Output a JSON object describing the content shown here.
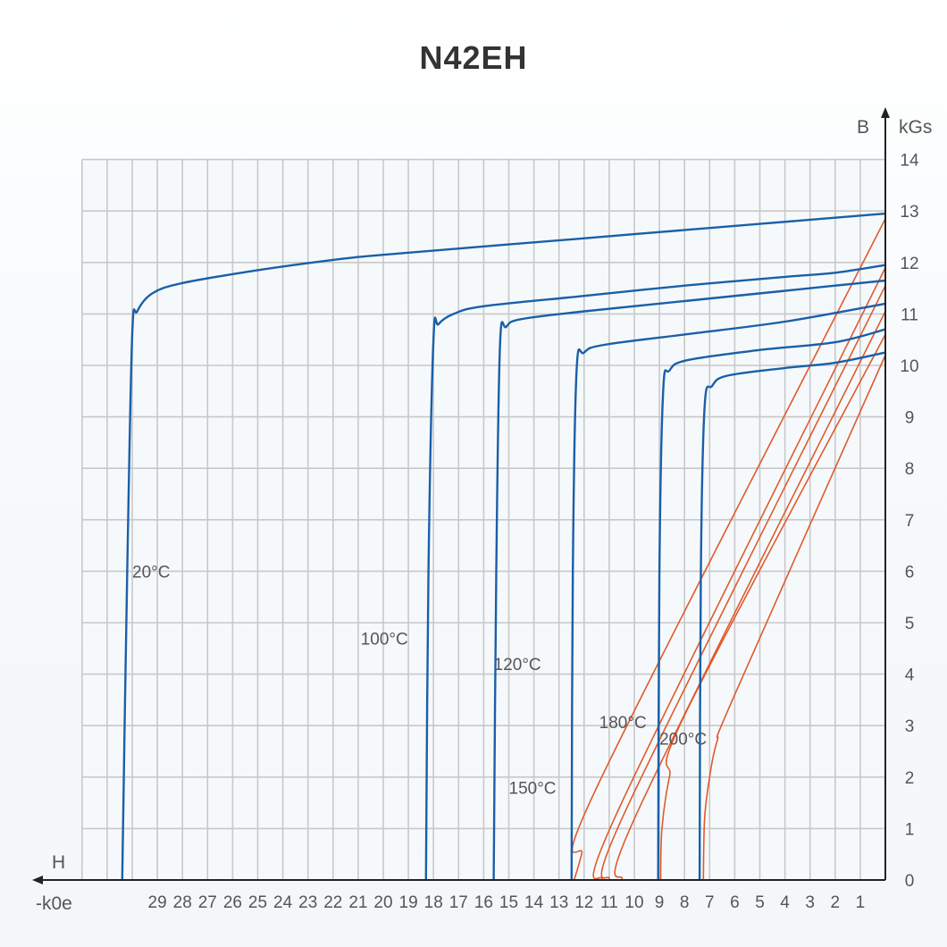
{
  "chart_data": {
    "type": "line",
    "title": "N42EH",
    "xlabel": "H",
    "xunit": "-k0e",
    "ylabel": "B",
    "yunit": "kGs",
    "x_ticks": [
      "29",
      "28",
      "27",
      "26",
      "25",
      "24",
      "23",
      "22",
      "21",
      "20",
      "19",
      "18",
      "17",
      "16",
      "15",
      "14",
      "13",
      "12",
      "11",
      "10",
      "9",
      "8",
      "7",
      "6",
      "5",
      "4",
      "3",
      "2",
      "1"
    ],
    "y_ticks": [
      "0",
      "1",
      "2",
      "3",
      "4",
      "5",
      "6",
      "7",
      "8",
      "9",
      "10",
      "11",
      "12",
      "13",
      "14"
    ],
    "xlim": [
      32,
      0
    ],
    "ylim": [
      0,
      14
    ],
    "grid": true,
    "colors": {
      "b_curve": "#1a5fa8",
      "j_curve": "#e05a2b",
      "grid": "#c8c8c8",
      "axis": "#222222"
    },
    "b_curves": [
      {
        "name": "20°C",
        "label": "20°C",
        "points": [
          [
            30.4,
            0
          ],
          [
            30.2,
            6
          ],
          [
            30.0,
            10.6
          ],
          [
            29.8,
            11.05
          ],
          [
            29.2,
            11.4
          ],
          [
            28,
            11.6
          ],
          [
            25,
            11.85
          ],
          [
            22,
            12.05
          ],
          [
            20,
            12.15
          ],
          [
            15,
            12.35
          ],
          [
            10,
            12.55
          ],
          [
            5,
            12.75
          ],
          [
            0,
            12.95
          ]
        ]
      },
      {
        "name": "100°C",
        "label": "100°C",
        "points": [
          [
            18.3,
            0
          ],
          [
            18.2,
            6
          ],
          [
            18.0,
            10.5
          ],
          [
            17.8,
            10.8
          ],
          [
            17.2,
            11.0
          ],
          [
            16,
            11.15
          ],
          [
            12,
            11.35
          ],
          [
            8,
            11.55
          ],
          [
            4,
            11.72
          ],
          [
            2,
            11.8
          ],
          [
            0,
            11.95
          ]
        ]
      },
      {
        "name": "120°C",
        "label": "120°C",
        "points": [
          [
            15.6,
            0
          ],
          [
            15.5,
            6
          ],
          [
            15.35,
            10.4
          ],
          [
            15.1,
            10.75
          ],
          [
            14.5,
            10.9
          ],
          [
            12,
            11.05
          ],
          [
            8,
            11.25
          ],
          [
            4,
            11.45
          ],
          [
            0,
            11.65
          ]
        ]
      },
      {
        "name": "150°C",
        "label": "150°C",
        "points": [
          [
            12.5,
            0
          ],
          [
            12.45,
            6
          ],
          [
            12.3,
            9.9
          ],
          [
            12.0,
            10.25
          ],
          [
            11.2,
            10.4
          ],
          [
            8,
            10.6
          ],
          [
            4,
            10.85
          ],
          [
            0,
            11.2
          ]
        ]
      },
      {
        "name": "180°C",
        "label": "180°C",
        "points": [
          [
            9.05,
            0
          ],
          [
            9.0,
            6
          ],
          [
            8.85,
            9.5
          ],
          [
            8.6,
            9.9
          ],
          [
            7.9,
            10.1
          ],
          [
            5,
            10.3
          ],
          [
            2,
            10.45
          ],
          [
            0,
            10.7
          ]
        ]
      },
      {
        "name": "200°C",
        "label": "200°C",
        "points": [
          [
            7.4,
            0
          ],
          [
            7.35,
            6
          ],
          [
            7.2,
            9.2
          ],
          [
            6.9,
            9.6
          ],
          [
            6.3,
            9.8
          ],
          [
            4,
            9.95
          ],
          [
            2,
            10.05
          ],
          [
            0,
            10.25
          ]
        ]
      }
    ],
    "j_curves": [
      {
        "name": "20°C",
        "points": [
          [
            12.4,
            0
          ],
          [
            12.1,
            0.5
          ],
          [
            11.4,
            1.9
          ],
          [
            0,
            12.85
          ]
        ]
      },
      {
        "name": "100°C",
        "points": [
          [
            11.3,
            0
          ],
          [
            10.6,
            1.4
          ],
          [
            0,
            11.9
          ]
        ]
      },
      {
        "name": "120°C",
        "points": [
          [
            11.0,
            0
          ],
          [
            10.3,
            1.4
          ],
          [
            0,
            11.55
          ]
        ]
      },
      {
        "name": "150°C",
        "points": [
          [
            10.5,
            0
          ],
          [
            9.8,
            1.4
          ],
          [
            0,
            11.05
          ]
        ]
      },
      {
        "name": "180°C",
        "points": [
          [
            8.95,
            0
          ],
          [
            8.9,
            1.0
          ],
          [
            8.6,
            2.0
          ],
          [
            7.9,
            3.3
          ],
          [
            0,
            10.6
          ]
        ]
      },
      {
        "name": "200°C",
        "points": [
          [
            7.25,
            0
          ],
          [
            7.2,
            1.2
          ],
          [
            7.0,
            2.0
          ],
          [
            6.7,
            2.7
          ],
          [
            6.0,
            3.6
          ],
          [
            0,
            10.2
          ]
        ]
      }
    ],
    "annotations": [
      {
        "text": "20°C",
        "H": 30.0,
        "B": 6.0
      },
      {
        "text": "100°C",
        "H": 20.9,
        "B": 4.7
      },
      {
        "text": "120°C",
        "H": 15.6,
        "B": 4.2
      },
      {
        "text": "150°C",
        "H": 15.0,
        "B": 1.8
      },
      {
        "text": "180°C",
        "H": 11.4,
        "B": 3.07
      },
      {
        "text": "200°C",
        "H": 9.0,
        "B": 2.75
      }
    ]
  },
  "labels": {
    "title": "N42EH",
    "x_axis_name": "H",
    "x_axis_unit": "-k0e",
    "y_axis_name": "B",
    "y_axis_unit": "kGs"
  }
}
